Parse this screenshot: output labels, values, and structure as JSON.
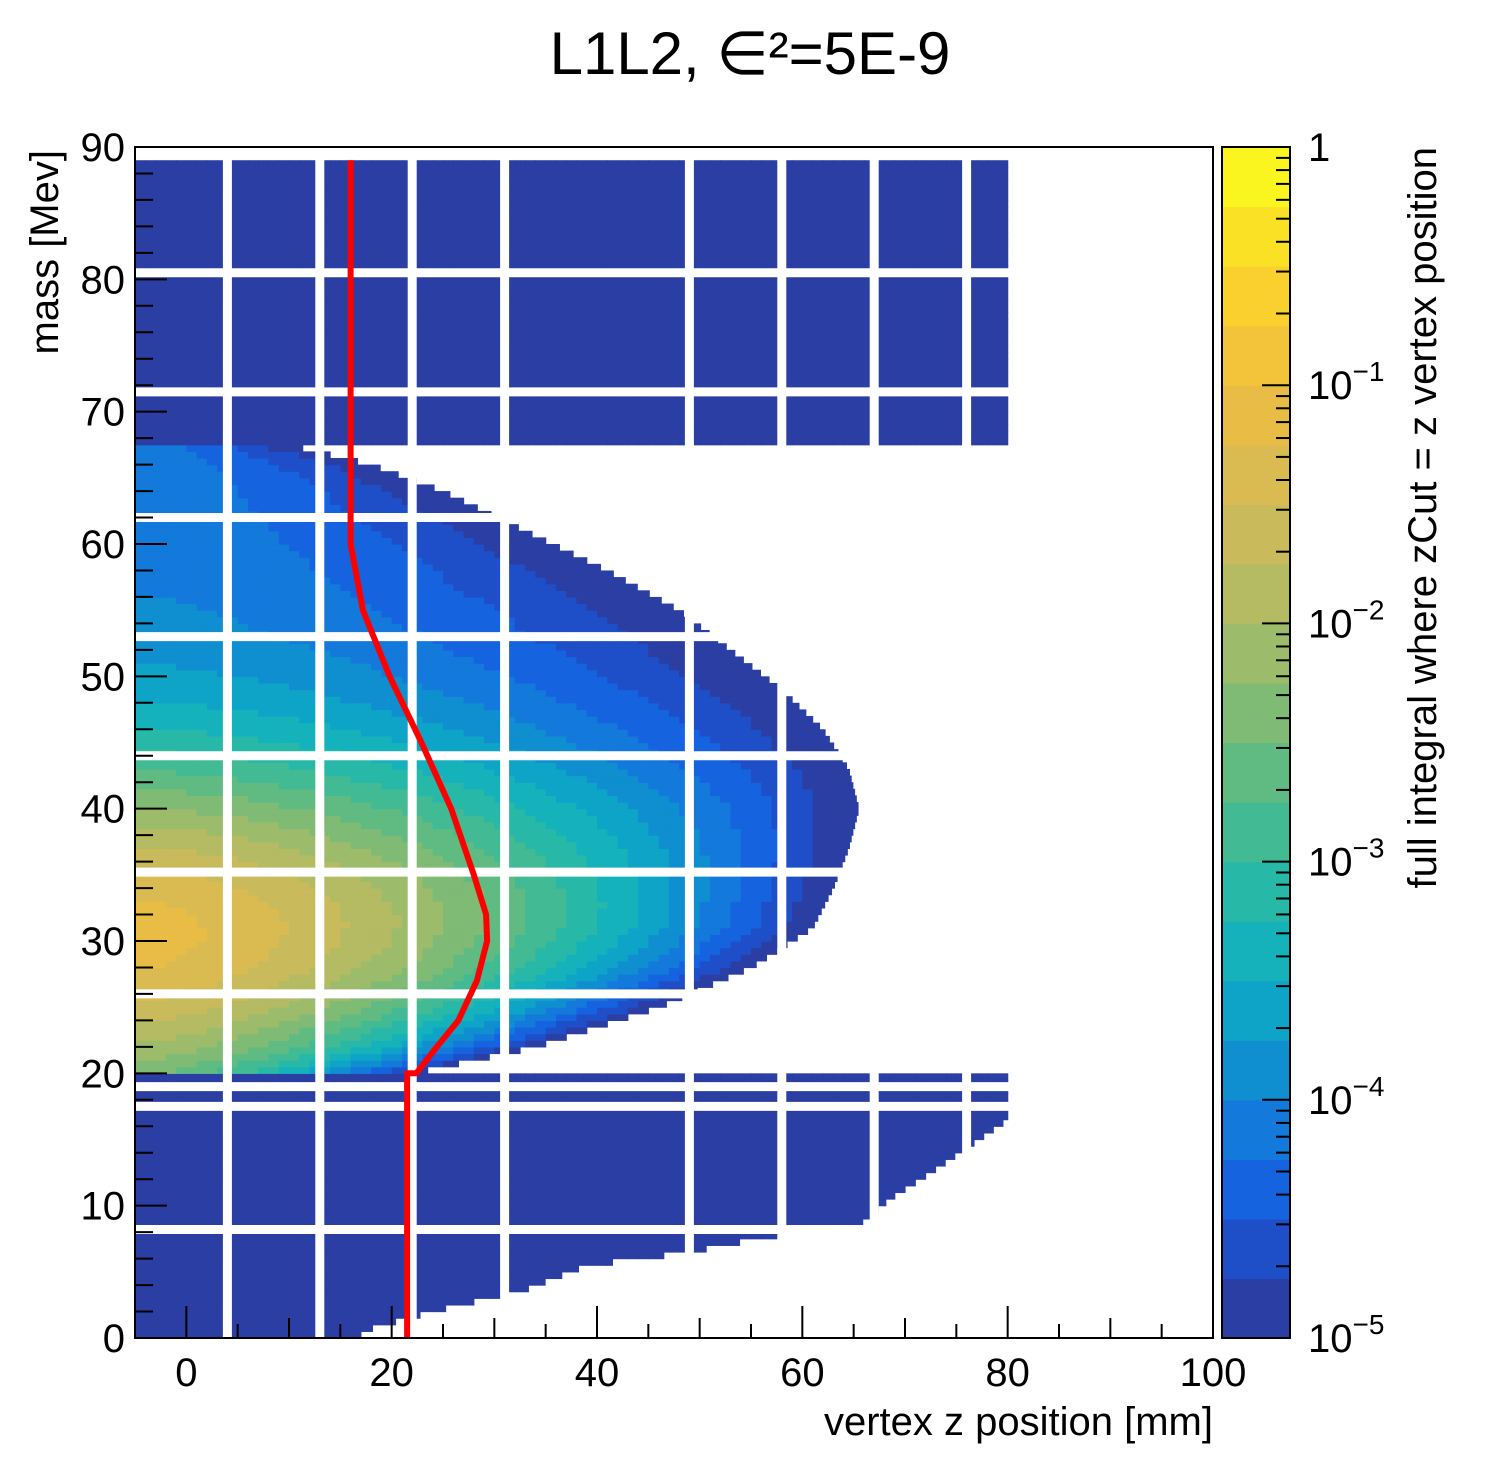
{
  "chart_data": {
    "type": "heatmap",
    "title": "L1L2, ∈²=5E-9",
    "xlabel": "vertex z position [mm]",
    "ylabel": "mass [Mev]",
    "zlabel": "full integral where zCut = z vertex position",
    "xlim": [
      -5,
      100
    ],
    "ylim": [
      0,
      90
    ],
    "zlim": [
      1e-05,
      1
    ],
    "zscale": "log",
    "x_ticks": [
      "0",
      "20",
      "40",
      "60",
      "80",
      "100"
    ],
    "x_tick_values": [
      0,
      20,
      40,
      60,
      80,
      100
    ],
    "y_ticks": [
      "0",
      "10",
      "20",
      "30",
      "40",
      "50",
      "60",
      "70",
      "80",
      "90"
    ],
    "y_tick_values": [
      0,
      10,
      20,
      30,
      40,
      50,
      60,
      70,
      80,
      90
    ],
    "z_ticks": [
      "10^-5",
      "10^-4",
      "10^-3",
      "10^-2",
      "10^-1",
      "1"
    ],
    "palette": [
      "#2a3ea3",
      "#1f4fc8",
      "#1663e0",
      "#1379db",
      "#0f8fd0",
      "#0ea4c8",
      "#15b2bc",
      "#28b8a8",
      "#42ba94",
      "#60bb82",
      "#7fbb74",
      "#9cbc6b",
      "#b4bb63",
      "#c9ba5c",
      "#dabb52",
      "#e9bd45",
      "#f3c43a",
      "#f9d02e",
      "#fbe125",
      "#faf51e"
    ],
    "signal_region": {
      "mass_range": [
        20,
        67.5
      ],
      "edge_mass": [
        20,
        22,
        25,
        28,
        31,
        34,
        37,
        40,
        43,
        46,
        49,
        52,
        55,
        58,
        61,
        64,
        66,
        67.5
      ],
      "edge_z": [
        22,
        34,
        46,
        55,
        61,
        63,
        64.5,
        65.5,
        64.5,
        62,
        58,
        53,
        48,
        41,
        33,
        25,
        18,
        10
      ],
      "peak_mass": 30.5,
      "peak_log10_value": -1.15,
      "ridge_mass": 40,
      "ridge_width": 12
    },
    "background_bands": [
      {
        "mass_range": [
          0,
          20
        ],
        "edge_mass": [
          0.5,
          1.5,
          2.5,
          3.5,
          5.5,
          6.5,
          7.5,
          8.5,
          10.5,
          12.5,
          16.5,
          19.5
        ],
        "edge_z": [
          17,
          21.5,
          26.5,
          32.5,
          39,
          49,
          55.5,
          65.5,
          68.5,
          72.5,
          80,
          80
        ],
        "value": 1e-05
      },
      {
        "mass_range": [
          67.5,
          89
        ],
        "edge_z": [
          80
        ],
        "value": 1e-05
      }
    ],
    "grid_lines": {
      "x": [
        4,
        13,
        22,
        31,
        49,
        58,
        67,
        76
      ],
      "y": [
        8.2,
        17.5,
        19,
        26,
        35.2,
        44,
        53,
        62,
        71.5,
        80.5
      ]
    },
    "series": [
      {
        "x": [
          16,
          16,
          16,
          16,
          17.2,
          19.8,
          22.9,
          25.8,
          28,
          29.2,
          29.3,
          28.3,
          26.5,
          24.4,
          22.4,
          21.5,
          21.5,
          21.5,
          21.5,
          21.5,
          21.5
        ],
        "y": [
          89,
          80,
          70,
          60,
          55,
          50,
          45,
          40,
          35,
          32,
          30,
          27,
          24,
          22,
          20,
          20,
          15,
          10,
          5,
          1,
          0
        ],
        "color": "#ff0000"
      }
    ]
  }
}
